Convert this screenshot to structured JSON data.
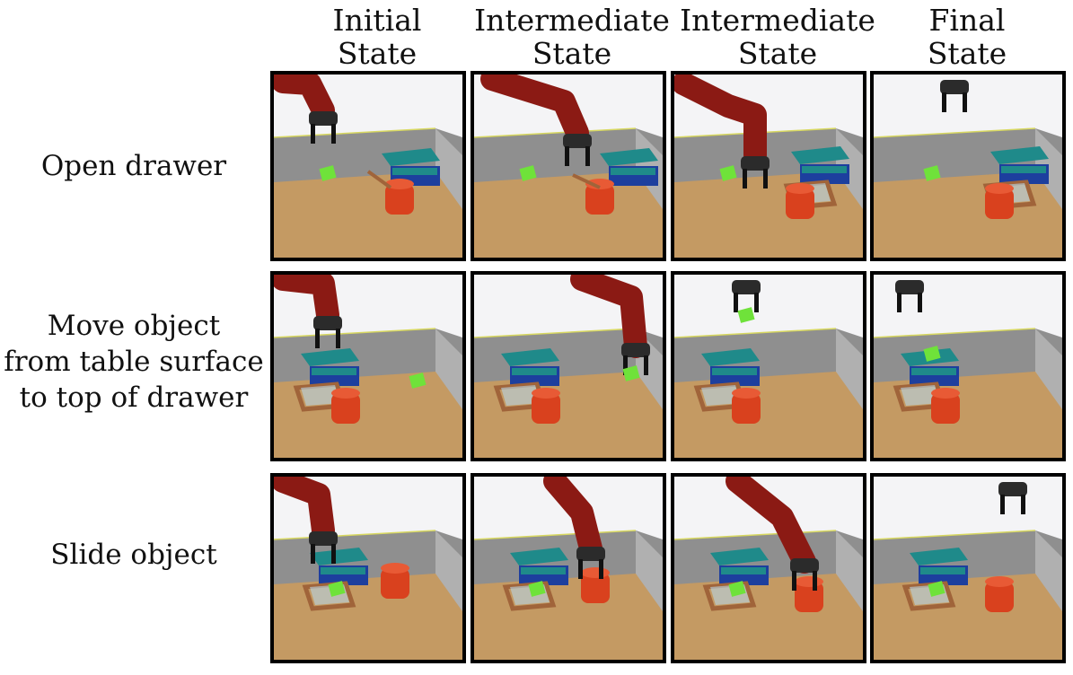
{
  "columns": [
    "Initial\nState",
    "Intermediate\nState",
    "Intermediate\nState",
    "Final\nState"
  ],
  "column_lines": [
    [
      "Initial",
      "State"
    ],
    [
      "Intermediate",
      "State"
    ],
    [
      "Intermediate",
      "State"
    ],
    [
      "Final",
      "State"
    ]
  ],
  "rows": [
    {
      "label_lines": [
        "Open drawer"
      ]
    },
    {
      "label_lines": [
        "Move object",
        "from table surface",
        "to top of drawer"
      ]
    },
    {
      "label_lines": [
        "Slide object"
      ]
    }
  ],
  "colors": {
    "robot_red": "#8b1a14",
    "gripper": "#2b2b2b",
    "drawer_teal": "#1f8a8a",
    "drawer_blue": "#1d3f9e",
    "cylinder": "#d9411e",
    "cube_green": "#6fe23a",
    "floor": "#c49a63",
    "wall": "#9a9a9a"
  }
}
